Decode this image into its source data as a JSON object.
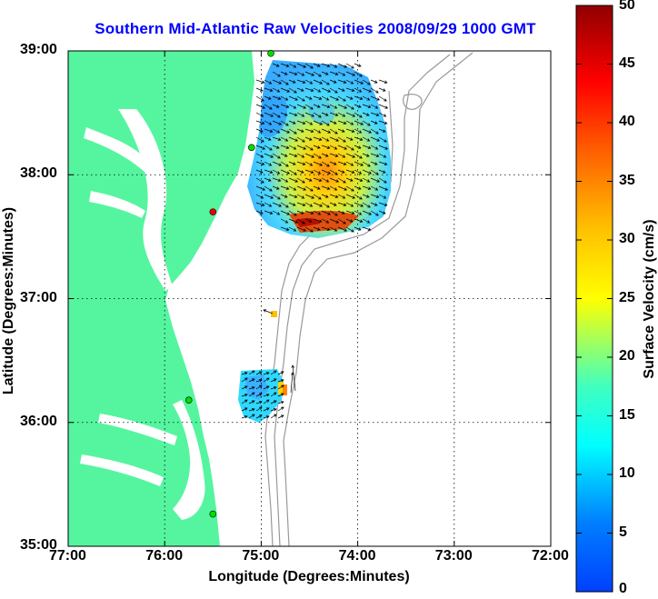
{
  "title": "Southern Mid-Atlantic Raw Velocities 2008/09/29 1000 GMT",
  "map": {
    "xlabel": "Longitude (Degrees:Minutes)",
    "ylabel": "Latitude (Degrees:Minutes)",
    "lon_range": [
      -77,
      -72
    ],
    "lat_range": [
      35,
      39
    ],
    "x_ticks": [
      {
        "lon": -77,
        "label": "77:00"
      },
      {
        "lon": -76,
        "label": "76:00"
      },
      {
        "lon": -75,
        "label": "75:00"
      },
      {
        "lon": -74,
        "label": "74:00"
      },
      {
        "lon": -73,
        "label": "73:00"
      },
      {
        "lon": -72,
        "label": "72:00"
      }
    ],
    "y_ticks": [
      {
        "lat": 35,
        "label": "35:00"
      },
      {
        "lat": 36,
        "label": "36:00"
      },
      {
        "lat": 37,
        "label": "37:00"
      },
      {
        "lat": 38,
        "label": "38:00"
      },
      {
        "lat": 39,
        "label": "39:00"
      }
    ],
    "grid": "dotted",
    "land_color": "#55f5a0",
    "bathymetry_color": "#999999"
  },
  "colorbar": {
    "label": "Surface Velocity (cm/s)",
    "range": [
      0,
      50
    ],
    "ticks": [
      "0",
      "5",
      "10",
      "15",
      "20",
      "25",
      "30",
      "35",
      "40",
      "45",
      "50"
    ]
  },
  "sites": [
    {
      "lon": -74.9,
      "lat": 38.98,
      "color": "#00dd00"
    },
    {
      "lon": -75.1,
      "lat": 38.22,
      "color": "#00dd00"
    },
    {
      "lon": -75.5,
      "lat": 37.7,
      "color": "#ee0000"
    },
    {
      "lon": -75.75,
      "lat": 36.18,
      "color": "#00dd00"
    },
    {
      "lon": -75.5,
      "lat": 35.26,
      "color": "#00dd00"
    }
  ]
}
